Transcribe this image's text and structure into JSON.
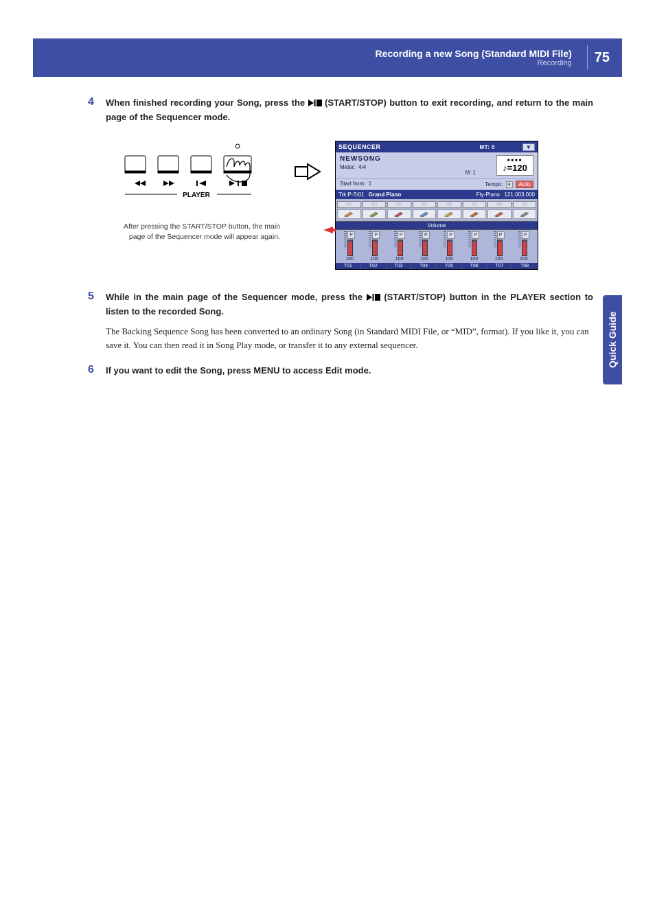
{
  "header": {
    "title": "Recording a new Song (Standard MIDI File)",
    "subtitle": "Recording",
    "page": "75"
  },
  "steps": {
    "s4": {
      "num": "4",
      "text_a": "When finished recording your Song, press the ",
      "text_b": " (START/STOP) button to exit recording, and return to the main page of the Sequencer mode."
    },
    "s5": {
      "num": "5",
      "text_a": "While in the main page of the Sequencer mode, press the ",
      "text_b": " (START/STOP) button in the PLAYER section to listen to the recorded Song.",
      "para": "The Backing Sequence Song has been converted to an ordinary Song (in Standard MIDI File, or “MID”, format). If you like it, you can save it. You can then read it in Song Play mode, or transfer it to any external sequencer."
    },
    "s6": {
      "num": "6",
      "text": "If you want to edit the Song, press MENU to access Edit mode."
    }
  },
  "caption": "After pressing the START/STOP button, the main page of the Sequencer mode will appear again.",
  "player": {
    "label": "PLAYER"
  },
  "sequencer": {
    "title": "SEQUENCER",
    "mt": "MT: 0",
    "song": "NEWSONG",
    "meter_label": "Meter:",
    "meter": "4/4",
    "measure": "M:  1",
    "start_from_label": "Start from:",
    "start_from": "1",
    "tempo_label": "Tempo:",
    "tempo_mode": "Auto",
    "tempo_beats": "■■■■",
    "tempo_prefix": "♪=",
    "tempo_value": "120",
    "trk_prefix": "Trk:P-Tr01",
    "trk_name": "Grand Piano",
    "trk_cat": "Fty-Piano",
    "trk_prog": "121.003.000",
    "vol_header": "Volume",
    "slider_value": "100",
    "p_badge": "P",
    "mute_badge": "□□",
    "tracks": [
      "T01",
      "T02",
      "T03",
      "T04",
      "T05",
      "T06",
      "T07",
      "T08"
    ],
    "instr_colors": [
      "#d08a4a",
      "#7aa050",
      "#c05060",
      "#6a88c0",
      "#c8a050",
      "#c07030",
      "#b86848",
      "#888888"
    ]
  },
  "side_tab": "Quick Guide",
  "colors": {
    "brand": "#3d4ea3",
    "seq_dark": "#2b3a8c",
    "seq_light": "#c8cee8",
    "seq_mid": "#aeb6da",
    "red": "#cc4444",
    "pointer": "#e03030"
  }
}
